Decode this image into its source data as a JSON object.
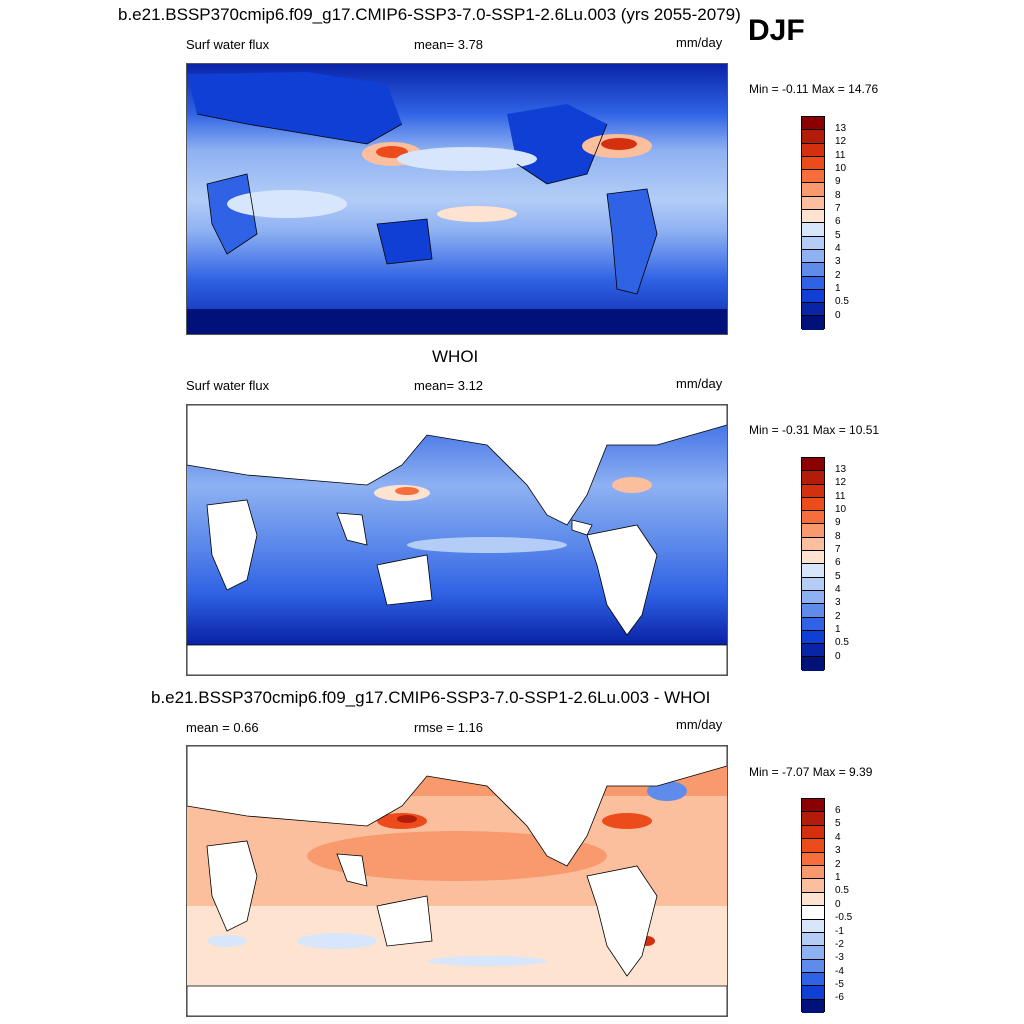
{
  "season": "DJF",
  "panels": [
    {
      "title": "b.e21.BSSP370cmip6.f09_g17.CMIP6-SSP3-7.0-SSP1-2.6Lu.003 (yrs 2055-2079)",
      "left_label": "Surf water flux",
      "center_label": "mean=   3.78",
      "units": "mm/day",
      "minmax": "Min =  -0.11 Max =  14.76",
      "ticks": [
        "13",
        "12",
        "11",
        "10",
        "9",
        "8",
        "7",
        "6",
        "5",
        "4",
        "3",
        "2",
        "1",
        "0.5",
        "0"
      ]
    },
    {
      "title": "WHOI",
      "left_label": "Surf water flux",
      "center_label": "mean=   3.12",
      "units": "mm/day",
      "minmax": "Min =  -0.31 Max =  10.51",
      "ticks": [
        "13",
        "12",
        "11",
        "10",
        "9",
        "8",
        "7",
        "6",
        "5",
        "4",
        "3",
        "2",
        "1",
        "0.5",
        "0"
      ]
    },
    {
      "title": "b.e21.BSSP370cmip6.f09_g17.CMIP6-SSP3-7.0-SSP1-2.6Lu.003 - WHOI",
      "left_label": "mean =   0.66",
      "center_label": "rmse =   1.16",
      "units": "mm/day",
      "minmax": "Min =  -7.07 Max =   9.39",
      "ticks": [
        "6",
        "5",
        "4",
        "3",
        "2",
        "1",
        "0.5",
        "0",
        "-0.5",
        "-1",
        "-2",
        "-3",
        "-4",
        "-5",
        "-6"
      ]
    }
  ],
  "colors": {
    "seq": [
      "#8b0000",
      "#b41c0a",
      "#d4300f",
      "#ec4b1c",
      "#f56e3c",
      "#f89a6e",
      "#fbbf9d",
      "#fde3d0",
      "#d7e6fb",
      "#b3cdf7",
      "#8eb1f2",
      "#5f8ceb",
      "#2f62e4",
      "#0f3fd4",
      "#0a24a8",
      "#00117a"
    ],
    "div": [
      "#8b0000",
      "#b41c0a",
      "#d4300f",
      "#ec4b1c",
      "#f56e3c",
      "#f89a6e",
      "#fbbf9d",
      "#fde3d0",
      "#ffffff",
      "#d7e6fb",
      "#b3cdf7",
      "#8eb1f2",
      "#5f8ceb",
      "#2f62e4",
      "#0f3fd4",
      "#00117a"
    ]
  }
}
